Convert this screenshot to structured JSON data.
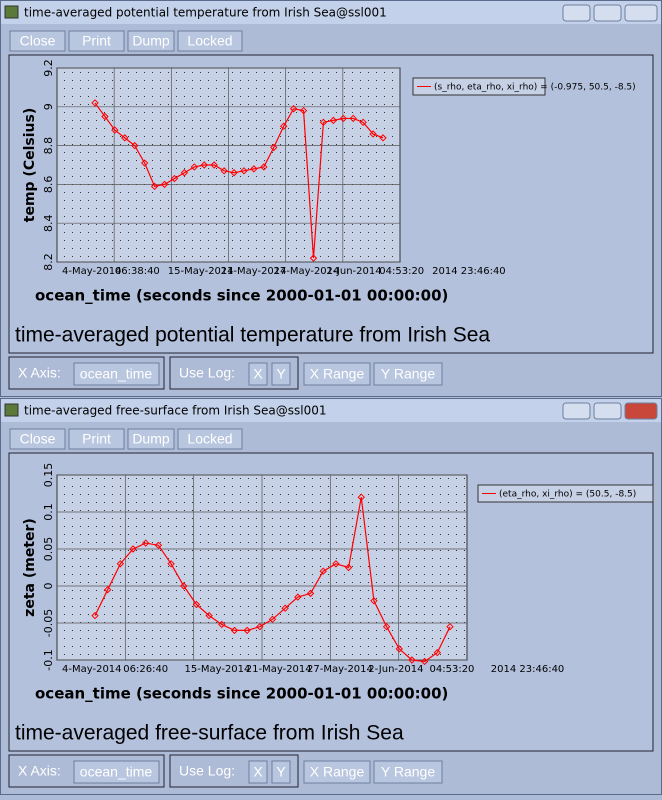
{
  "windows": [
    {
      "title": "time-averaged potential temperature from Irish Sea@ssl001",
      "buttons": [
        "Close",
        "Print",
        "Dump",
        "Locked"
      ],
      "controls": {
        "x_axis_label": "X Axis:",
        "x_axis_value": "ocean_time",
        "use_log": "Use Log:",
        "log_x": "X",
        "log_y": "Y",
        "x_range": "X Range",
        "y_range": "Y Range"
      }
    },
    {
      "title": "time-averaged free-surface from Irish Sea@ssl001",
      "buttons": [
        "Close",
        "Print",
        "Dump",
        "Locked"
      ],
      "controls": {
        "x_axis_label": "X Axis:",
        "x_axis_value": "ocean_time",
        "use_log": "Use Log:",
        "log_x": "X",
        "log_y": "Y",
        "x_range": "X Range",
        "y_range": "Y Range"
      }
    }
  ],
  "chart_data": [
    {
      "type": "line",
      "title": "time-averaged potential temperature from Irish Sea",
      "xlabel": "ocean_time (seconds since 2000-01-01 00:00:00)",
      "ylabel": "temp (Celsius)",
      "xtick_labels": [
        "4-May-2014",
        "06:38:40",
        "15-May-2014",
        "21-May-2014",
        "27-May-2014",
        "2-Jun-2014",
        "04:53:20",
        "2014 23:46:40"
      ],
      "ylim": [
        8.2,
        9.2
      ],
      "yticks": [
        8.2,
        8.4,
        8.6,
        8.8,
        9,
        9.2
      ],
      "grid": true,
      "legend": "upper right",
      "series": [
        {
          "name": "(s_rho, eta_rho, xi_rho) = (-0.975, 50.5, -8.5)",
          "color": "#ff0000",
          "values": [
            9.02,
            8.95,
            8.88,
            8.84,
            8.8,
            8.71,
            8.59,
            8.6,
            8.63,
            8.66,
            8.69,
            8.7,
            8.7,
            8.67,
            8.66,
            8.67,
            8.68,
            8.69,
            8.79,
            8.9,
            8.99,
            8.98,
            8.22,
            8.92,
            8.93,
            8.94,
            8.94,
            8.92,
            8.86,
            8.84
          ]
        }
      ]
    },
    {
      "type": "line",
      "title": "time-averaged free-surface from Irish Sea",
      "xlabel": "ocean_time (seconds since 2000-01-01 00:00:00)",
      "ylabel": "zeta (meter)",
      "xtick_labels": [
        "4-May-2014",
        "06:26:40",
        "15-May-2014",
        "21-May-2014",
        "27-May-2014",
        "2-Jun-2014",
        "04:53:20",
        "2014 23:46:40"
      ],
      "ylim": [
        -0.1,
        0.15
      ],
      "yticks": [
        -0.1,
        -0.05,
        0,
        0.05,
        0.1,
        0.15
      ],
      "grid": true,
      "legend": "upper right",
      "series": [
        {
          "name": "(eta_rho, xi_rho) = (50.5, -8.5)",
          "color": "#ff0000",
          "values": [
            -0.04,
            -0.005,
            0.03,
            0.05,
            0.058,
            0.055,
            0.03,
            0,
            -0.025,
            -0.04,
            -0.052,
            -0.06,
            -0.06,
            -0.055,
            -0.045,
            -0.03,
            -0.015,
            -0.01,
            0.02,
            0.03,
            0.025,
            0.12,
            -0.02,
            -0.055,
            -0.085,
            -0.1,
            -0.102,
            -0.09,
            -0.055
          ]
        }
      ]
    }
  ]
}
